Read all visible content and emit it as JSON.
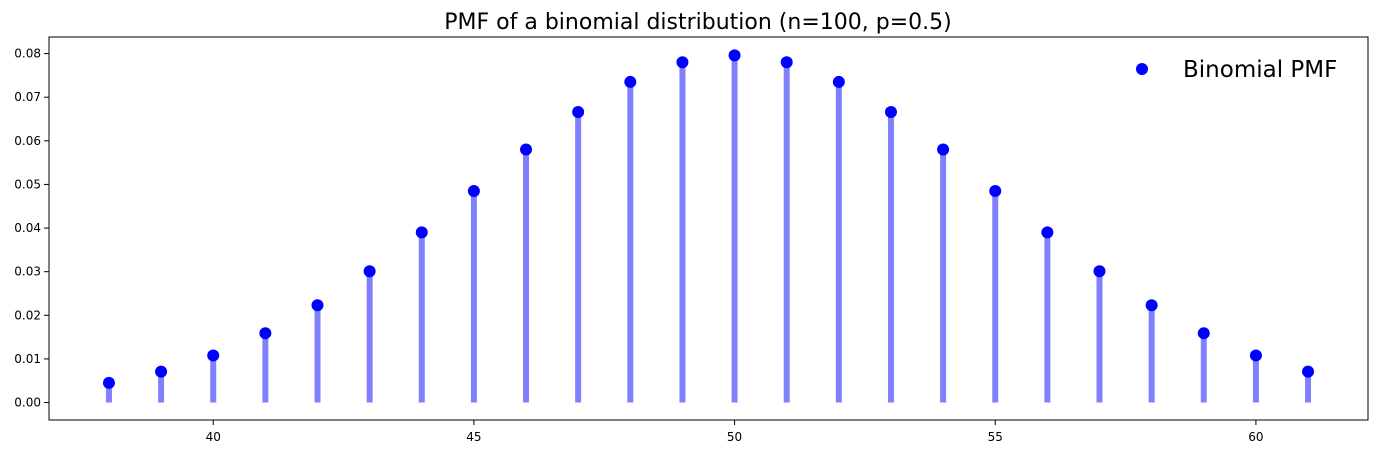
{
  "chart_data": {
    "type": "stem",
    "title": "PMF of a binomial distribution (n=100, p=0.5)",
    "xlabel": "",
    "ylabel": "",
    "xlim": [
      36.85,
      62.15
    ],
    "ylim": [
      -0.004,
      0.0838
    ],
    "x_ticks": [
      40,
      45,
      50,
      55,
      60
    ],
    "x_tick_labels": [
      "40",
      "45",
      "50",
      "55",
      "60"
    ],
    "y_ticks": [
      0.0,
      0.01,
      0.02,
      0.03,
      0.04,
      0.05,
      0.06,
      0.07,
      0.08
    ],
    "y_tick_labels": [
      "0.00",
      "0.01",
      "0.02",
      "0.03",
      "0.04",
      "0.05",
      "0.06",
      "0.07",
      "0.08"
    ],
    "grid": false,
    "legend": {
      "location": "top-right",
      "frame": false,
      "entries": [
        "Binomial PMF"
      ]
    },
    "series": [
      {
        "name": "Binomial PMF",
        "marker_color": "#0000ff",
        "stem_color": "#8080ff",
        "x": [
          38,
          39,
          40,
          41,
          42,
          43,
          44,
          45,
          46,
          47,
          48,
          49,
          50,
          51,
          52,
          53,
          54,
          55,
          56,
          57,
          58,
          59,
          60,
          61
        ],
        "y": [
          0.0045,
          0.0071,
          0.0108,
          0.0159,
          0.0223,
          0.0301,
          0.039,
          0.0485,
          0.058,
          0.0666,
          0.0735,
          0.078,
          0.0796,
          0.078,
          0.0735,
          0.0666,
          0.058,
          0.0485,
          0.039,
          0.0301,
          0.0223,
          0.0159,
          0.0108,
          0.0071
        ]
      }
    ]
  }
}
